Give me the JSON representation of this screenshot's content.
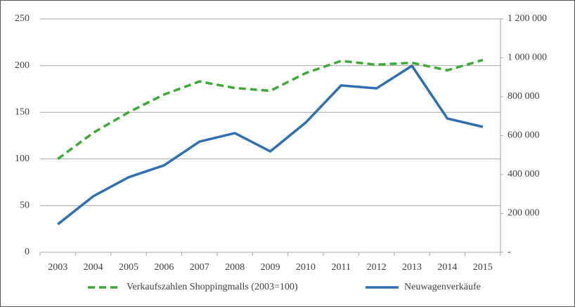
{
  "chart_data": {
    "type": "line",
    "categories": [
      "2003",
      "2004",
      "2005",
      "2006",
      "2007",
      "2008",
      "2009",
      "2010",
      "2011",
      "2012",
      "2013",
      "2014",
      "2015"
    ],
    "series": [
      {
        "name": "Verkaufszahlen Shoppingmalls (2003=100)",
        "color": "#3aaa35",
        "dashed": true,
        "values": [
          100,
          128,
          150,
          169,
          183,
          176,
          173,
          192,
          205,
          201,
          203,
          195,
          206
        ]
      },
      {
        "name": "Neuwagenverkäufe",
        "color": "#2e6fb0",
        "axis": "y2",
        "values": [
          144000,
          288000,
          386000,
          447000,
          569000,
          613000,
          519000,
          667000,
          858000,
          843000,
          959000,
          688000,
          645000
        ]
      }
    ],
    "ylim": [
      0,
      250
    ],
    "yticks": [
      0,
      50,
      100,
      150,
      200,
      250
    ],
    "y2lim": [
      0,
      1200000
    ],
    "y2ticks": [
      {
        "value": 0,
        "label": "-"
      },
      {
        "value": 200000,
        "label": "200 000"
      },
      {
        "value": 400000,
        "label": "400 000"
      },
      {
        "value": 600000,
        "label": "600 000"
      },
      {
        "value": 800000,
        "label": "800 000"
      },
      {
        "value": 1000000,
        "label": "1 000 000"
      },
      {
        "value": 1200000,
        "label": "1 200 000"
      }
    ],
    "grid": true,
    "legend": "bottom"
  }
}
